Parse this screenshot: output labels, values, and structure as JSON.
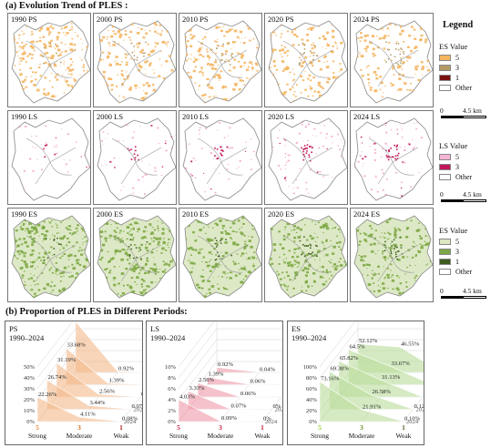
{
  "figure": {
    "section_a_title": "(a) Evolution Trend of PLES :",
    "section_b_title": "(b) Proportion of PLES in Different Periods:",
    "legend_title": "Legend"
  },
  "map_rows": [
    {
      "labels": [
        "1990 PS",
        "2000 PS",
        "2010 PS",
        "2020 PS",
        "2024 PS"
      ],
      "dot_color": "#f4b560",
      "dark_color": "#b39a64"
    },
    {
      "labels": [
        "1990 LS",
        "2000 LS",
        "2010 LS",
        "2020 LS",
        "2024 LS"
      ],
      "dot_color": "#f2a3cb",
      "dark_color": "#c2185b"
    },
    {
      "labels": [
        "1990 ES",
        "2000 ES",
        "2010 ES",
        "2020 ES",
        "2024 ES"
      ],
      "dot_color": "#7ea845",
      "dark_color": "#3d5c1e"
    }
  ],
  "legends": [
    {
      "head": "ES Value",
      "items": [
        {
          "label": "5",
          "color": "#f4b560"
        },
        {
          "label": "3",
          "color": "#b39a64"
        },
        {
          "label": "1",
          "color": "#7a1010"
        },
        {
          "label": "Other",
          "color": "#ffffff"
        }
      ]
    },
    {
      "head": "LS Value",
      "items": [
        {
          "label": "5",
          "color": "#f5b6d5"
        },
        {
          "label": "3",
          "color": "#c2185b"
        },
        {
          "label": "Other",
          "color": "#ffffff"
        }
      ]
    },
    {
      "head": "ES Value",
      "items": [
        {
          "label": "5",
          "color": "#dce8c2"
        },
        {
          "label": "3",
          "color": "#7ea845"
        },
        {
          "label": "1",
          "color": "#3d5c1e"
        },
        {
          "label": "Other",
          "color": "#ffffff"
        }
      ]
    }
  ],
  "scale": {
    "zero": "0",
    "km": "4.5 km"
  },
  "chart_data": [
    {
      "type": "area",
      "title": "PS",
      "subtitle": "1990–2024",
      "x": [
        "1990",
        "2000",
        "2010",
        "2020",
        "2024"
      ],
      "categories": [
        "Strong",
        "Moderate",
        "Weak"
      ],
      "category_ticks": [
        "5",
        "3",
        "1"
      ],
      "category_colors": [
        "#e8872d",
        "#d2691e",
        "#b22222"
      ],
      "fill": "#f3b98a",
      "z_ticks": [
        "0%",
        "10%",
        "20%",
        "30%",
        "40%",
        "50%"
      ],
      "zlim": [
        0,
        50
      ],
      "series": [
        {
          "name": "1990",
          "values": [
            46.55,
            0.92,
            0.04
          ]
        },
        {
          "name": "2000",
          "values": [
            33.68,
            1.39,
            0.06
          ]
        },
        {
          "name": "2010",
          "values": [
            31.19,
            2.56,
            0.06
          ]
        },
        {
          "name": "2020",
          "values": [
            26.74,
            3.44,
            0.07
          ]
        },
        {
          "name": "2024",
          "values": [
            22.26,
            4.11,
            0.08
          ]
        }
      ]
    },
    {
      "type": "area",
      "title": "LS",
      "subtitle": "1990–2024",
      "x": [
        "1990",
        "2000",
        "2010",
        "2020",
        "2024"
      ],
      "categories": [
        "Strong",
        "Moderate",
        "Weak"
      ],
      "category_ticks": [
        "5",
        "3",
        "1"
      ],
      "category_colors": [
        "#cc1f3a",
        "#cc1f3a",
        "#cc1f3a"
      ],
      "fill": "#ef9aa8",
      "z_ticks": [
        "0%",
        "2%",
        "4%",
        "6%",
        "8%",
        "10%"
      ],
      "zlim": [
        0,
        10
      ],
      "series": [
        {
          "name": "1990",
          "values": [
            0.92,
            0.04,
            0
          ]
        },
        {
          "name": "2000",
          "values": [
            1.39,
            0.06,
            0
          ]
        },
        {
          "name": "2010",
          "values": [
            2.56,
            0.06,
            0
          ]
        },
        {
          "name": "2020",
          "values": [
            3.33,
            0.07,
            0
          ]
        },
        {
          "name": "2024",
          "values": [
            4.03,
            0.09,
            0
          ]
        }
      ]
    },
    {
      "type": "area",
      "title": "ES",
      "subtitle": "1990–2024",
      "x": [
        "1990",
        "2000",
        "2010",
        "2020",
        "2024"
      ],
      "categories": [
        "Strong",
        "Moderate",
        "Weak"
      ],
      "category_ticks": [
        "5",
        "3",
        "1"
      ],
      "category_colors": [
        "#9acd32",
        "#6b8e23",
        "#556b2f"
      ],
      "fill": "#b9dc9a",
      "z_ticks": [
        "0%",
        "20%",
        "40%",
        "60%",
        "80%",
        "100%"
      ],
      "zlim": [
        0,
        100
      ],
      "series": [
        {
          "name": "1990",
          "values": [
            52.12,
            46.55,
            0
          ]
        },
        {
          "name": "2000",
          "values": [
            64.5,
            33.67,
            0
          ]
        },
        {
          "name": "2010",
          "values": [
            65.82,
            31.13,
            0
          ]
        },
        {
          "name": "2020",
          "values": [
            69.38,
            26.58,
            0.12
          ]
        },
        {
          "name": "2024",
          "values": [
            73.16,
            21.91,
            0.1
          ]
        }
      ]
    }
  ],
  "value_labels": [
    [
      "46.55%",
      "0.92%",
      "0.04%",
      "33.68%",
      "1.39%",
      "0.06%",
      "31.19%",
      "2.56%",
      "0.06%",
      "26.74%",
      "3.44%",
      "0.07%",
      "22.26%",
      "4.11%",
      "0.08%"
    ],
    [
      "0.92%",
      "0.04%",
      "0%",
      "1.39%",
      "0.06%",
      "0%",
      "2.56%",
      "0.06%",
      "0%",
      "3.33%",
      "0.07%",
      "0%",
      "4.03%",
      "0.09%",
      "0%"
    ],
    [
      "52.12%",
      "46.55%",
      "0%",
      "64.5%",
      "33.67%",
      "0%",
      "65.82%",
      "31.13%",
      "0%",
      "69.38%",
      "26.58%",
      "0.12%",
      "73.16%",
      "21.91%",
      "0.10%"
    ]
  ]
}
